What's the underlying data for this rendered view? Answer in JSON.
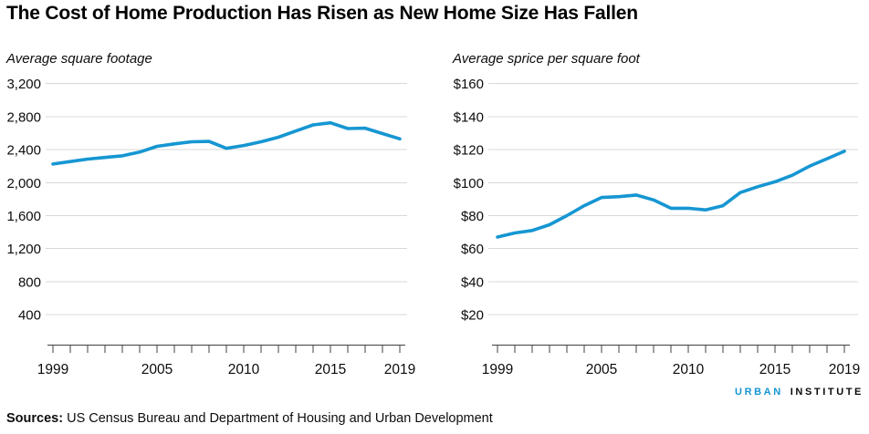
{
  "figure": {
    "title": "The Cost of Home Production Has Risen as New Home Size Has Fallen"
  },
  "chart_data": [
    {
      "type": "line",
      "title": "Average square footage",
      "x": [
        1999,
        2000,
        2001,
        2002,
        2003,
        2004,
        2005,
        2006,
        2007,
        2008,
        2009,
        2010,
        2011,
        2012,
        2013,
        2014,
        2015,
        2016,
        2017,
        2018,
        2019
      ],
      "values": [
        2225,
        2255,
        2285,
        2305,
        2325,
        2370,
        2440,
        2470,
        2495,
        2500,
        2415,
        2450,
        2495,
        2550,
        2625,
        2700,
        2725,
        2655,
        2660,
        2595,
        2530
      ],
      "y_ticks": [
        3200,
        2800,
        2400,
        2000,
        1600,
        1200,
        800,
        400
      ],
      "y_tick_labels": [
        "3,200",
        "2,800",
        "2,400",
        "2,000",
        "1,600",
        "1,200",
        "800",
        "400"
      ],
      "x_label_years": [
        1999,
        2005,
        2010,
        2015,
        2019
      ],
      "ylim": [
        200,
        3400
      ],
      "grid": true,
      "legend": "none",
      "line_color": "#1696d2"
    },
    {
      "type": "line",
      "title": "Average sprice per square foot",
      "x": [
        1999,
        2000,
        2001,
        2002,
        2003,
        2004,
        2005,
        2006,
        2007,
        2008,
        2009,
        2010,
        2011,
        2012,
        2013,
        2014,
        2015,
        2016,
        2017,
        2018,
        2019
      ],
      "values": [
        67,
        69.5,
        71,
        74.5,
        80,
        86,
        91,
        91.5,
        92.5,
        89.5,
        84.5,
        84.5,
        83.5,
        86,
        94,
        97.5,
        100.5,
        104.5,
        110,
        114.5,
        119
      ],
      "y_ticks": [
        160,
        140,
        120,
        100,
        80,
        60,
        40,
        20
      ],
      "y_tick_labels": [
        "$160",
        "$140",
        "$120",
        "$100",
        "$80",
        "$60",
        "$40",
        "$20"
      ],
      "x_label_years": [
        1999,
        2005,
        2010,
        2015,
        2019
      ],
      "ylim": [
        10,
        170
      ],
      "grid": true,
      "legend": "none",
      "line_color": "#1696d2"
    }
  ],
  "footer": {
    "logo_urban": "URBAN",
    "logo_institute": "INSTITUTE",
    "sources_label": "Sources:",
    "sources_text": " US Census Bureau and Department of Housing and Urban Development"
  },
  "colors": {
    "accent_blue": "#1696d2",
    "grid_gray": "#d8d8d8",
    "axis_gray": "#404040"
  }
}
